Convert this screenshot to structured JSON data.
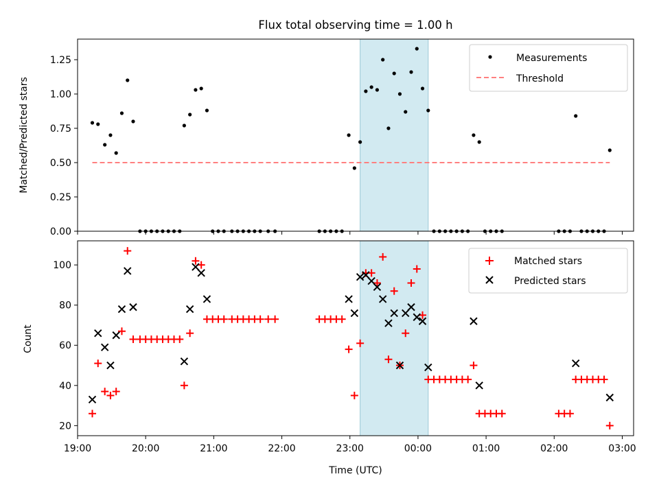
{
  "figure": {
    "title": "Flux total observing time = 1.00 h",
    "xlabel": "Time (UTC)"
  },
  "colors": {
    "measurement": "#000000",
    "threshold": "#ff7f7f",
    "matched": "#ff0000",
    "predicted": "#000000",
    "highlight": "#add8e6"
  },
  "chart_data": [
    {
      "type": "scatter",
      "ylabel": "Matched/Predicted stars",
      "ylim": [
        0,
        1.4
      ],
      "yticks": [
        0.0,
        0.25,
        0.5,
        0.75,
        1.0,
        1.25
      ],
      "xlim": [
        "19:00",
        "03:10"
      ],
      "xticks": [
        "19:00",
        "20:00",
        "21:00",
        "22:00",
        "23:00",
        "00:00",
        "01:00",
        "02:00",
        "03:00"
      ],
      "highlight_span": [
        "23:09",
        "00:09"
      ],
      "legend": "top-right",
      "legend_labels": [
        "Measurements",
        "Threshold"
      ],
      "threshold": {
        "value": 0.5,
        "x": [
          "19:13",
          "02:49"
        ]
      },
      "series": [
        {
          "name": "Measurements",
          "marker": "dot",
          "points": [
            [
              "19:13",
              0.79
            ],
            [
              "19:18",
              0.78
            ],
            [
              "19:24",
              0.63
            ],
            [
              "19:29",
              0.7
            ],
            [
              "19:34",
              0.57
            ],
            [
              "19:39",
              0.86
            ],
            [
              "19:44",
              1.1
            ],
            [
              "19:49",
              0.8
            ],
            [
              "19:55",
              0.0
            ],
            [
              "20:00",
              0.0
            ],
            [
              "20:05",
              0.0
            ],
            [
              "20:10",
              0.0
            ],
            [
              "20:15",
              0.0
            ],
            [
              "20:20",
              0.0
            ],
            [
              "20:25",
              0.0
            ],
            [
              "20:30",
              0.0
            ],
            [
              "20:34",
              0.77
            ],
            [
              "20:39",
              0.85
            ],
            [
              "20:44",
              1.03
            ],
            [
              "20:49",
              1.04
            ],
            [
              "20:54",
              0.88
            ],
            [
              "20:59",
              0.0
            ],
            [
              "21:04",
              0.0
            ],
            [
              "21:09",
              0.0
            ],
            [
              "21:16",
              0.0
            ],
            [
              "21:21",
              0.0
            ],
            [
              "21:26",
              0.0
            ],
            [
              "21:31",
              0.0
            ],
            [
              "21:36",
              0.0
            ],
            [
              "21:41",
              0.0
            ],
            [
              "21:48",
              0.0
            ],
            [
              "21:54",
              0.0
            ],
            [
              "22:33",
              0.0
            ],
            [
              "22:38",
              0.0
            ],
            [
              "22:43",
              0.0
            ],
            [
              "22:48",
              0.0
            ],
            [
              "22:53",
              0.0
            ],
            [
              "22:59",
              0.7
            ],
            [
              "23:04",
              0.46
            ],
            [
              "23:09",
              0.65
            ],
            [
              "23:14",
              1.02
            ],
            [
              "23:19",
              1.05
            ],
            [
              "23:24",
              1.03
            ],
            [
              "23:29",
              1.25
            ],
            [
              "23:34",
              0.75
            ],
            [
              "23:39",
              1.15
            ],
            [
              "23:44",
              1.0
            ],
            [
              "23:49",
              0.87
            ],
            [
              "23:54",
              1.16
            ],
            [
              "23:59",
              1.33
            ],
            [
              "00:04",
              1.04
            ],
            [
              "00:09",
              0.88
            ],
            [
              "00:14",
              0.0
            ],
            [
              "00:19",
              0.0
            ],
            [
              "00:24",
              0.0
            ],
            [
              "00:29",
              0.0
            ],
            [
              "00:34",
              0.0
            ],
            [
              "00:39",
              0.0
            ],
            [
              "00:44",
              0.0
            ],
            [
              "00:49",
              0.7
            ],
            [
              "00:54",
              0.65
            ],
            [
              "00:59",
              0.0
            ],
            [
              "01:04",
              0.0
            ],
            [
              "01:09",
              0.0
            ],
            [
              "01:14",
              0.0
            ],
            [
              "02:04",
              0.0
            ],
            [
              "02:09",
              0.0
            ],
            [
              "02:14",
              0.0
            ],
            [
              "02:19",
              0.84
            ],
            [
              "02:24",
              0.0
            ],
            [
              "02:29",
              0.0
            ],
            [
              "02:34",
              0.0
            ],
            [
              "02:39",
              0.0
            ],
            [
              "02:44",
              0.0
            ],
            [
              "02:49",
              0.59
            ]
          ]
        }
      ]
    },
    {
      "type": "scatter",
      "ylabel": "Count",
      "ylim": [
        15,
        112
      ],
      "yticks": [
        20,
        40,
        60,
        80,
        100
      ],
      "xlim": [
        "19:00",
        "03:10"
      ],
      "xticks": [
        "19:00",
        "20:00",
        "21:00",
        "22:00",
        "23:00",
        "00:00",
        "01:00",
        "02:00",
        "03:00"
      ],
      "highlight_span": [
        "23:09",
        "00:09"
      ],
      "legend": "top-right",
      "series": [
        {
          "name": "Matched stars",
          "marker": "plus",
          "points": [
            [
              "19:13",
              26
            ],
            [
              "19:18",
              51
            ],
            [
              "19:24",
              37
            ],
            [
              "19:29",
              35
            ],
            [
              "19:34",
              37
            ],
            [
              "19:39",
              67
            ],
            [
              "19:44",
              107
            ],
            [
              "19:49",
              63
            ],
            [
              "19:55",
              63
            ],
            [
              "20:00",
              63
            ],
            [
              "20:05",
              63
            ],
            [
              "20:10",
              63
            ],
            [
              "20:15",
              63
            ],
            [
              "20:20",
              63
            ],
            [
              "20:25",
              63
            ],
            [
              "20:30",
              63
            ],
            [
              "20:34",
              40
            ],
            [
              "20:39",
              66
            ],
            [
              "20:44",
              102
            ],
            [
              "20:49",
              100
            ],
            [
              "20:54",
              73
            ],
            [
              "20:59",
              73
            ],
            [
              "21:04",
              73
            ],
            [
              "21:09",
              73
            ],
            [
              "21:16",
              73
            ],
            [
              "21:21",
              73
            ],
            [
              "21:26",
              73
            ],
            [
              "21:31",
              73
            ],
            [
              "21:36",
              73
            ],
            [
              "21:41",
              73
            ],
            [
              "21:48",
              73
            ],
            [
              "21:54",
              73
            ],
            [
              "22:33",
              73
            ],
            [
              "22:38",
              73
            ],
            [
              "22:43",
              73
            ],
            [
              "22:48",
              73
            ],
            [
              "22:53",
              73
            ],
            [
              "22:59",
              58
            ],
            [
              "23:04",
              35
            ],
            [
              "23:09",
              61
            ],
            [
              "23:14",
              96
            ],
            [
              "23:19",
              96
            ],
            [
              "23:24",
              91
            ],
            [
              "23:29",
              104
            ],
            [
              "23:34",
              53
            ],
            [
              "23:39",
              87
            ],
            [
              "23:44",
              50
            ],
            [
              "23:49",
              66
            ],
            [
              "23:54",
              91
            ],
            [
              "23:59",
              98
            ],
            [
              "00:04",
              75
            ],
            [
              "00:09",
              43
            ],
            [
              "00:14",
              43
            ],
            [
              "00:19",
              43
            ],
            [
              "00:24",
              43
            ],
            [
              "00:29",
              43
            ],
            [
              "00:34",
              43
            ],
            [
              "00:39",
              43
            ],
            [
              "00:44",
              43
            ],
            [
              "00:49",
              50
            ],
            [
              "00:54",
              26
            ],
            [
              "00:59",
              26
            ],
            [
              "01:04",
              26
            ],
            [
              "01:09",
              26
            ],
            [
              "01:14",
              26
            ],
            [
              "02:04",
              26
            ],
            [
              "02:09",
              26
            ],
            [
              "02:14",
              26
            ],
            [
              "02:19",
              43
            ],
            [
              "02:24",
              43
            ],
            [
              "02:29",
              43
            ],
            [
              "02:34",
              43
            ],
            [
              "02:39",
              43
            ],
            [
              "02:44",
              43
            ],
            [
              "02:49",
              20
            ]
          ]
        },
        {
          "name": "Predicted stars",
          "marker": "x",
          "points": [
            [
              "19:13",
              33
            ],
            [
              "19:18",
              66
            ],
            [
              "19:24",
              59
            ],
            [
              "19:29",
              50
            ],
            [
              "19:34",
              65
            ],
            [
              "19:39",
              78
            ],
            [
              "19:44",
              97
            ],
            [
              "19:49",
              79
            ],
            [
              "20:34",
              52
            ],
            [
              "20:39",
              78
            ],
            [
              "20:44",
              99
            ],
            [
              "20:49",
              96
            ],
            [
              "20:54",
              83
            ],
            [
              "22:59",
              83
            ],
            [
              "23:04",
              76
            ],
            [
              "23:09",
              94
            ],
            [
              "23:14",
              95
            ],
            [
              "23:19",
              92
            ],
            [
              "23:24",
              89
            ],
            [
              "23:29",
              83
            ],
            [
              "23:34",
              71
            ],
            [
              "23:39",
              76
            ],
            [
              "23:44",
              50
            ],
            [
              "23:49",
              76
            ],
            [
              "23:54",
              79
            ],
            [
              "23:59",
              74
            ],
            [
              "00:04",
              72
            ],
            [
              "00:09",
              49
            ],
            [
              "00:49",
              72
            ],
            [
              "00:54",
              40
            ],
            [
              "02:19",
              51
            ],
            [
              "02:49",
              34
            ]
          ]
        }
      ]
    }
  ]
}
